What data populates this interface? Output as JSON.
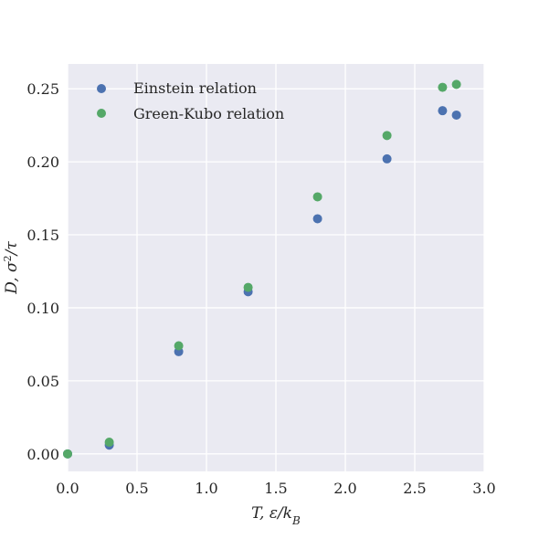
{
  "chart_data": {
    "type": "scatter",
    "xlabel": "T, ε/k_B",
    "ylabel": "D, σ²/τ",
    "xlim": [
      0.0,
      3.0
    ],
    "ylim": [
      -0.012,
      0.267
    ],
    "xticks": [
      "0.0",
      "0.5",
      "1.0",
      "1.5",
      "2.0",
      "2.5",
      "3.0"
    ],
    "yticks": [
      "0.00",
      "0.05",
      "0.10",
      "0.15",
      "0.20",
      "0.25"
    ],
    "grid": true,
    "legend_position": "top-left",
    "series": [
      {
        "name": "Einstein relation",
        "color": "#4c72b0",
        "x": [
          0.0,
          0.3,
          0.8,
          1.3,
          1.8,
          2.3,
          2.7,
          2.8
        ],
        "y": [
          0.0,
          0.006,
          0.07,
          0.111,
          0.161,
          0.202,
          0.235,
          0.232
        ]
      },
      {
        "name": "Green-Kubo relation",
        "color": "#55a868",
        "x": [
          0.0,
          0.3,
          0.8,
          1.3,
          1.8,
          2.3,
          2.7,
          2.8
        ],
        "y": [
          0.0,
          0.008,
          0.074,
          0.114,
          0.176,
          0.218,
          0.251,
          0.253
        ]
      }
    ]
  }
}
